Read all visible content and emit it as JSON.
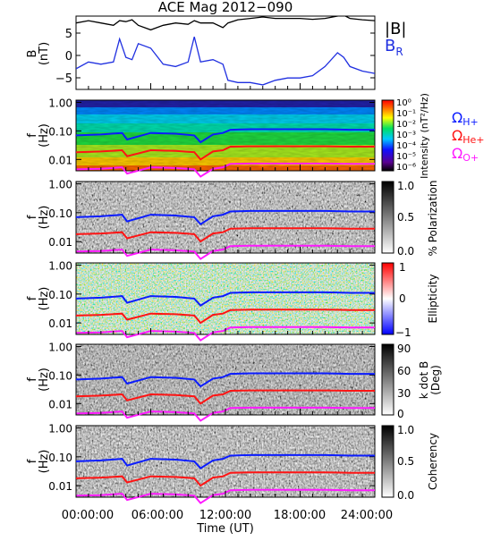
{
  "title": "ACE Mag 2012−090",
  "xlabel": "Time (UT)",
  "x_ticks": [
    "00:00:00",
    "06:00:00",
    "12:00:00",
    "18:00:00",
    "24:00:00"
  ],
  "colors": {
    "B_total": "#000000",
    "B_R": "#1f2fe0",
    "H_plus": "#0b1cff",
    "He_plus": "#ff1414",
    "O_plus": "#ff1aff"
  },
  "chart_data": [
    {
      "type": "line",
      "panel": "field",
      "ylabel": "B",
      "yunit": "(nT)",
      "ylim": [
        -8,
        8
      ],
      "y_ticks": [
        "5",
        "0",
        "−5"
      ],
      "legend": {
        "total": "|B|",
        "radial_main": "B",
        "radial_sub": "R"
      },
      "x_hours": [
        0,
        1,
        2,
        3,
        3.5,
        4,
        4.5,
        5,
        6,
        7,
        8,
        9,
        9.5,
        10,
        11,
        11.8,
        12.2,
        13,
        14,
        15,
        16,
        17,
        18,
        19,
        20,
        21,
        21.5,
        22,
        23,
        24
      ],
      "series": [
        {
          "name": "|B|",
          "values": [
            6.5,
            7,
            6.5,
            6,
            7,
            6.8,
            7.2,
            6,
            5,
            6,
            6.5,
            6.2,
            7,
            6.5,
            6.5,
            5.5,
            6.5,
            7.2,
            7.5,
            7.8,
            7.5,
            7.5,
            7.5,
            7.3,
            7.5,
            8,
            8.2,
            7.5,
            7.2,
            7
          ]
        },
        {
          "name": "B_R",
          "values": [
            -3.5,
            -2,
            -2.5,
            -2,
            3,
            -1,
            -1.5,
            2,
            1,
            -2.5,
            -3,
            -2,
            3.5,
            -2,
            -1.5,
            -2.5,
            -6,
            -6.5,
            -6.5,
            -7,
            -6,
            -5.5,
            -5.5,
            -5,
            -3,
            0,
            -1,
            -3,
            -4,
            -4.5
          ]
        }
      ]
    },
    {
      "type": "heatmap",
      "panel": "intensity",
      "ylabel": "f",
      "yunit": "(Hz)",
      "y_ticks": [
        "1.00",
        "0.10",
        "0.01"
      ],
      "colorbar_label": "Intensity (nT²/Hz)",
      "colorbar_ticks": [
        "10⁰",
        "10⁻¹",
        "10⁻²",
        "10⁻³",
        "10⁻⁴",
        "10⁻⁵",
        "10⁻⁶"
      ],
      "colorbar_colors": [
        "#ffffff",
        "#ffffff"
      ]
    },
    {
      "type": "heatmap",
      "panel": "polarization",
      "ylabel": "f",
      "yunit": "(Hz)",
      "y_ticks": [
        "1.00",
        "0.10",
        "0.01"
      ],
      "colorbar_label": "% Polarization",
      "colorbar_ticks": [
        "1.0",
        "0.5",
        "0.0"
      ]
    },
    {
      "type": "heatmap",
      "panel": "ellipticity",
      "ylabel": "f",
      "yunit": "(Hz)",
      "y_ticks": [
        "1.00",
        "0.10",
        "0.01"
      ],
      "colorbar_label": "Ellipticity",
      "colorbar_ticks": [
        "1",
        "0",
        "−1"
      ]
    },
    {
      "type": "heatmap",
      "panel": "kdotb",
      "ylabel": "f",
      "yunit": "(Hz)",
      "y_ticks": [
        "1.00",
        "0.10",
        "0.01"
      ],
      "colorbar_label": "k dot B (Deg)",
      "colorbar_ticks": [
        "90",
        "60",
        "30",
        "0"
      ]
    },
    {
      "type": "heatmap",
      "panel": "coherency",
      "ylabel": "f",
      "yunit": "(Hz)",
      "y_ticks": [
        "1.00",
        "0.10",
        "0.01"
      ],
      "colorbar_label": "Coherency",
      "colorbar_ticks": [
        "1.0",
        "0.5",
        "0.0"
      ]
    }
  ],
  "gyrofrequencies": {
    "x_hours": [
      0,
      2,
      3.7,
      4.1,
      6,
      8,
      9.5,
      10,
      11,
      11.8,
      12.4,
      14,
      16,
      18,
      20,
      22,
      24
    ],
    "H_plus_hz": [
      0.07,
      0.075,
      0.085,
      0.05,
      0.085,
      0.08,
      0.07,
      0.04,
      0.075,
      0.085,
      0.11,
      0.115,
      0.115,
      0.115,
      0.115,
      0.11,
      0.11
    ],
    "He_plus_hz": [
      0.018,
      0.019,
      0.021,
      0.013,
      0.021,
      0.02,
      0.018,
      0.01,
      0.019,
      0.021,
      0.028,
      0.029,
      0.029,
      0.029,
      0.029,
      0.028,
      0.028
    ],
    "O_plus_hz": [
      0.0045,
      0.0047,
      0.0053,
      0.0032,
      0.0053,
      0.005,
      0.0045,
      0.0025,
      0.0047,
      0.0053,
      0.007,
      0.0072,
      0.0072,
      0.0072,
      0.0072,
      0.007,
      0.007
    ],
    "labels": {
      "H_main": "Ω",
      "H_sub": "H+",
      "He_main": "Ω",
      "He_sub": "He+",
      "O_main": "Ω",
      "O_sub": "O+"
    }
  }
}
